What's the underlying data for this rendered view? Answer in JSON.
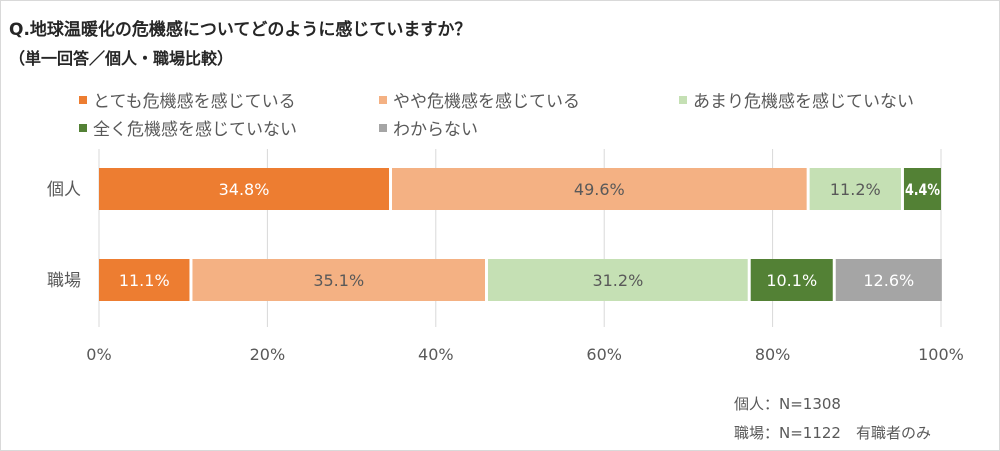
{
  "title": "Q.地球温暖化の危機感についてどのように感じていますか？",
  "subtitle": "（単一回答／個人・職場比較）",
  "notes": [
    "個人：N=1308",
    "職場：N=1122　有職者のみ"
  ],
  "chart_data": {
    "type": "bar",
    "orientation": "horizontal",
    "stacked": true,
    "categories": [
      "個人",
      "職場"
    ],
    "series": [
      {
        "name": "とても危機感を感じている",
        "values": [
          34.8,
          11.1
        ],
        "labels": [
          "34.8%",
          "11.1%"
        ],
        "color": "#ED7D31",
        "label_color": "#ffffff"
      },
      {
        "name": "やや危機感を感じている",
        "values": [
          49.6,
          35.1
        ],
        "labels": [
          "49.6%",
          "35.1%"
        ],
        "color": "#F4B183",
        "label_color": "#595959"
      },
      {
        "name": "あまり危機感を感じていない",
        "values": [
          11.2,
          31.2
        ],
        "labels": [
          "11.2%",
          "31.2%"
        ],
        "color": "#C5E0B4",
        "label_color": "#595959"
      },
      {
        "name": "全く危機感を感じていない",
        "values": [
          4.4,
          10.1
        ],
        "labels": [
          "4.4%",
          "10.1%"
        ],
        "color": "#538135",
        "label_color": "#ffffff"
      },
      {
        "name": "わからない",
        "values": [
          0,
          12.6
        ],
        "labels": [
          "",
          "12.6%"
        ],
        "color": "#A5A5A5",
        "label_color": "#ffffff"
      }
    ],
    "xlim": [
      0,
      100
    ],
    "xticks": [
      "0%",
      "20%",
      "40%",
      "60%",
      "80%",
      "100%"
    ],
    "grid": true,
    "legend_position": "top"
  }
}
